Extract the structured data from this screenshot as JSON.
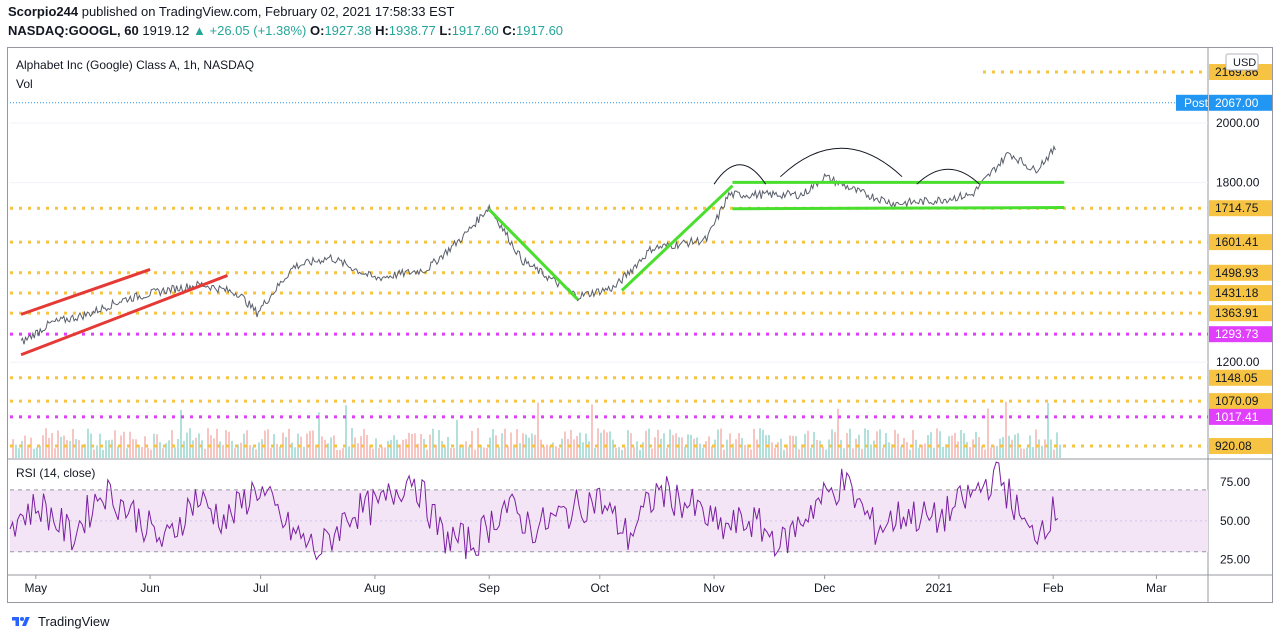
{
  "header": {
    "author": "Scorpio244",
    "published_text": "published on TradingView.com, February 02, 2021 17:58:33 EST",
    "symbol": "NASDAQ:GOOGL, 60",
    "last": "1919.12",
    "change_arrow": "▲",
    "change": "+26.05 (+1.38%)",
    "o_label": "O:",
    "o_value": "1927.38",
    "h_label": "H:",
    "h_value": "1938.77",
    "l_label": "L:",
    "l_value": "1917.60",
    "c_label": "C:",
    "c_value": "1917.60"
  },
  "footer": {
    "brand": "TradingView",
    "logo_icon": "tradingview-logo-icon"
  },
  "chart_data": [
    {
      "type": "line",
      "title": "Alphabet Inc (Google) Class A, 1h, NASDAQ",
      "subtitle": "Vol",
      "currency": "USD",
      "x_tick_labels": [
        "May",
        "Jun",
        "Jul",
        "Aug",
        "Sep",
        "Oct",
        "Nov",
        "Dec",
        "2021",
        "Feb",
        "Mar"
      ],
      "y_tick_labels": [
        "2000.00",
        "1800.00",
        "1200.00"
      ],
      "ylim": [
        880,
        2230
      ],
      "series": [
        {
          "values_approx": [
            [
              "2020-04-27",
              1265
            ],
            [
              "2020-05-05",
              1330
            ],
            [
              "2020-05-15",
              1360
            ],
            [
              "2020-05-25",
              1410
            ],
            [
              "2020-06-05",
              1440
            ],
            [
              "2020-06-15",
              1460
            ],
            [
              "2020-06-25",
              1430
            ],
            [
              "2020-06-30",
              1365
            ],
            [
              "2020-07-10",
              1520
            ],
            [
              "2020-07-20",
              1550
            ],
            [
              "2020-08-01",
              1480
            ],
            [
              "2020-08-15",
              1510
            ],
            [
              "2020-08-25",
              1620
            ],
            [
              "2020-09-01",
              1720
            ],
            [
              "2020-09-10",
              1540
            ],
            [
              "2020-09-20",
              1460
            ],
            [
              "2020-09-25",
              1420
            ],
            [
              "2020-10-05",
              1450
            ],
            [
              "2020-10-15",
              1580
            ],
            [
              "2020-10-25",
              1600
            ],
            [
              "2020-10-30",
              1610
            ],
            [
              "2020-11-05",
              1760
            ],
            [
              "2020-11-15",
              1760
            ],
            [
              "2020-11-25",
              1760
            ],
            [
              "2020-12-01",
              1820
            ],
            [
              "2020-12-10",
              1770
            ],
            [
              "2020-12-20",
              1730
            ],
            [
              "2020-12-31",
              1740
            ],
            [
              "2021-01-10",
              1760
            ],
            [
              "2021-01-20",
              1900
            ],
            [
              "2021-01-27",
              1840
            ],
            [
              "2021-02-02",
              1919
            ]
          ]
        }
      ],
      "price_levels": [
        {
          "label": "2169.86",
          "value": 2169.86,
          "color": "#f6c342",
          "style": "dotted"
        },
        {
          "label": "1714.75",
          "value": 1714.75,
          "color": "#f6c342",
          "style": "dotted"
        },
        {
          "label": "1601.41",
          "value": 1601.41,
          "color": "#f6c342",
          "style": "dotted"
        },
        {
          "label": "1498.93",
          "value": 1498.93,
          "color": "#f6c342",
          "style": "dotted"
        },
        {
          "label": "1431.18",
          "value": 1431.18,
          "color": "#f6c342",
          "style": "dotted"
        },
        {
          "label": "1363.91",
          "value": 1363.91,
          "color": "#f6c342",
          "style": "dotted"
        },
        {
          "label": "1293.73",
          "value": 1293.73,
          "color": "#e040fb",
          "style": "dotted"
        },
        {
          "label": "1148.05",
          "value": 1148.05,
          "color": "#f6c342",
          "style": "dotted"
        },
        {
          "label": "1070.09",
          "value": 1070.09,
          "color": "#f6c342",
          "style": "dotted"
        },
        {
          "label": "1017.41",
          "value": 1017.41,
          "color": "#e040fb",
          "style": "dotted"
        },
        {
          "label": "920.08",
          "value": 920.08,
          "color": "#f6c342",
          "style": "dotted"
        }
      ],
      "post_marker": {
        "label": "Post",
        "value_label": "2067.00",
        "value": 2067.0,
        "color": "#2196f3"
      },
      "trend_lines": [
        {
          "color": "#e53935",
          "from": [
            "2020-04-27",
            1360
          ],
          "to": [
            "2020-06-01",
            1510
          ]
        },
        {
          "color": "#e53935",
          "from": [
            "2020-04-27",
            1225
          ],
          "to": [
            "2020-06-22",
            1490
          ]
        },
        {
          "color": "#4ade2f",
          "from": [
            "2020-09-01",
            1710
          ],
          "to": [
            "2020-09-25",
            1410
          ]
        },
        {
          "color": "#4ade2f",
          "from": [
            "2020-10-07",
            1440
          ],
          "to": [
            "2020-11-06",
            1790
          ]
        },
        {
          "color": "#4ade2f",
          "from": [
            "2020-11-06",
            1801
          ],
          "to": [
            "2021-02-04",
            1801
          ]
        },
        {
          "color": "#4ade2f",
          "from": [
            "2020-11-06",
            1713
          ],
          "to": [
            "2021-02-04",
            1717
          ]
        }
      ]
    },
    {
      "type": "line",
      "title": "RSI (14, close)",
      "y_tick_labels": [
        "75.00",
        "50.00",
        "25.00"
      ],
      "ylim": [
        15,
        90
      ],
      "band": [
        30,
        70
      ],
      "series": [
        {
          "values_approx": [
            50,
            60,
            40,
            70,
            55,
            35,
            65,
            50,
            72,
            45,
            30,
            55,
            60,
            80,
            40,
            35,
            60,
            45,
            55,
            65,
            40,
            70,
            60,
            45,
            50,
            35,
            60,
            75,
            45,
            55,
            50,
            65,
            80,
            40,
            60
          ]
        }
      ]
    }
  ]
}
